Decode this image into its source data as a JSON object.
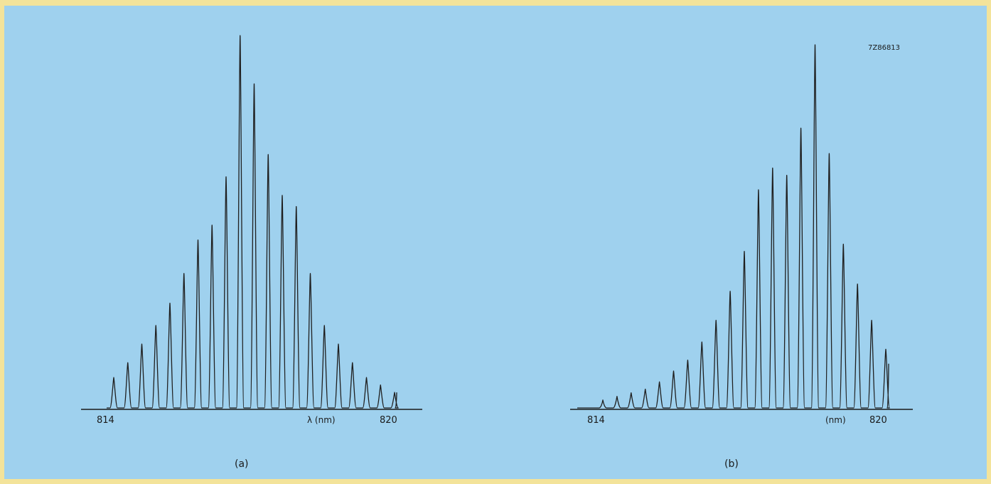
{
  "figure_code": "7Z86813",
  "colors": {
    "page_border": "#f3e39a",
    "panel_background": "#9fd1ee",
    "trace": "#1f1f1f"
  },
  "chart_data": [
    {
      "type": "line",
      "panel_label": "(a)",
      "xlabel": "λ (nm)",
      "x_ticks": [
        814,
        820
      ],
      "x_range": [
        814,
        820
      ],
      "grid": false,
      "legend": "none",
      "mode_count": 21,
      "relative_intensity": [
        0.08,
        0.12,
        0.17,
        0.22,
        0.28,
        0.36,
        0.45,
        0.49,
        0.62,
        1.0,
        0.87,
        0.68,
        0.57,
        0.54,
        0.36,
        0.22,
        0.17,
        0.12,
        0.08,
        0.06,
        0.04
      ]
    },
    {
      "type": "line",
      "panel_label": "(b)",
      "xlabel": "(nm)",
      "x_ticks": [
        814,
        820
      ],
      "x_range": [
        814,
        820
      ],
      "grid": false,
      "legend": "none",
      "mode_count": 21,
      "relative_intensity": [
        0.02,
        0.03,
        0.04,
        0.05,
        0.07,
        0.1,
        0.13,
        0.18,
        0.24,
        0.32,
        0.43,
        0.6,
        0.66,
        0.64,
        0.77,
        1.0,
        0.7,
        0.45,
        0.34,
        0.24,
        0.16
      ]
    }
  ]
}
